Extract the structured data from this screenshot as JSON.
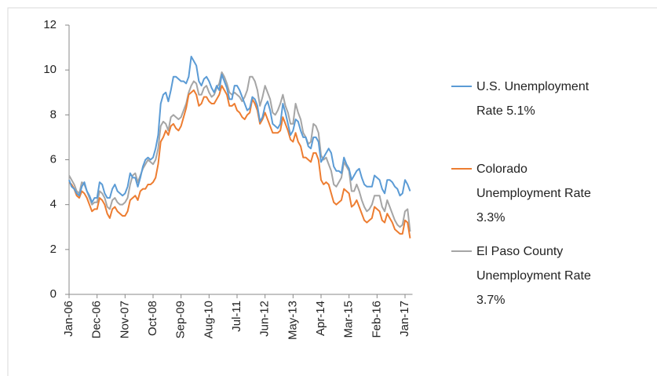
{
  "chart_data": {
    "type": "line",
    "categories": [
      "Jan-06",
      null,
      null,
      null,
      null,
      null,
      null,
      null,
      null,
      null,
      null,
      "Dec-06",
      null,
      null,
      null,
      null,
      null,
      null,
      null,
      null,
      null,
      null,
      "Nov-07",
      null,
      null,
      null,
      null,
      null,
      null,
      null,
      null,
      null,
      null,
      "Oct-08",
      null,
      null,
      null,
      null,
      null,
      null,
      null,
      null,
      null,
      null,
      "Sep-09",
      null,
      null,
      null,
      null,
      null,
      null,
      null,
      null,
      null,
      null,
      "Aug-10",
      null,
      null,
      null,
      null,
      null,
      null,
      null,
      null,
      null,
      null,
      "Jul-11",
      null,
      null,
      null,
      null,
      null,
      null,
      null,
      null,
      null,
      null,
      "Jun-12",
      null,
      null,
      null,
      null,
      null,
      null,
      null,
      null,
      null,
      null,
      "May-13",
      null,
      null,
      null,
      null,
      null,
      null,
      null,
      null,
      null,
      null,
      "Apr-14",
      null,
      null,
      null,
      null,
      null,
      null,
      null,
      null,
      null,
      null,
      "Mar-15",
      null,
      null,
      null,
      null,
      null,
      null,
      null,
      null,
      null,
      null,
      "Feb-16",
      null,
      null,
      null,
      null,
      null,
      null,
      null,
      null,
      null,
      null,
      "Jan-17",
      null,
      null
    ],
    "series": [
      {
        "name": "U.S. Unemployment Rate 5.1%",
        "color": "#5b9bd5",
        "values": [
          5.1,
          4.8,
          4.7,
          4.5,
          4.4,
          4.8,
          5.0,
          4.6,
          4.4,
          4.1,
          4.3,
          4.3,
          5.0,
          4.9,
          4.5,
          4.3,
          4.3,
          4.7,
          4.9,
          4.6,
          4.5,
          4.4,
          4.5,
          4.8,
          5.4,
          5.2,
          5.2,
          4.8,
          5.2,
          5.7,
          6.0,
          6.1,
          6.0,
          6.1,
          6.5,
          7.1,
          8.5,
          8.9,
          9.0,
          8.6,
          9.1,
          9.7,
          9.7,
          9.6,
          9.5,
          9.5,
          9.4,
          9.7,
          10.6,
          10.4,
          10.2,
          9.5,
          9.3,
          9.6,
          9.7,
          9.5,
          9.2,
          9.0,
          9.3,
          9.1,
          9.8,
          9.5,
          9.2,
          8.7,
          8.7,
          9.3,
          9.3,
          9.1,
          8.8,
          8.5,
          8.2,
          8.3,
          8.8,
          8.7,
          8.4,
          7.7,
          7.9,
          8.4,
          8.6,
          8.2,
          7.6,
          7.5,
          7.4,
          7.6,
          8.5,
          8.1,
          7.6,
          7.1,
          7.3,
          7.8,
          7.7,
          7.3,
          7.0,
          7.0,
          6.6,
          6.5,
          7.0,
          7.0,
          6.8,
          5.9,
          6.1,
          6.3,
          6.5,
          6.3,
          5.7,
          5.5,
          5.5,
          5.4,
          6.1,
          5.8,
          5.6,
          5.1,
          5.3,
          5.5,
          5.6,
          5.2,
          4.9,
          4.8,
          4.8,
          4.8,
          5.3,
          5.2,
          5.1,
          4.7,
          4.5,
          5.1,
          5.1,
          5.0,
          4.8,
          4.7,
          4.4,
          4.5,
          5.1,
          4.9,
          4.6
        ]
      },
      {
        "name": "Colorado Unemployment Rate 3.3%",
        "color": "#ed7d31",
        "values": [
          5.0,
          4.9,
          4.7,
          4.4,
          4.3,
          4.6,
          4.5,
          4.3,
          4.0,
          3.7,
          3.8,
          3.8,
          4.3,
          4.2,
          4.0,
          3.6,
          3.4,
          3.8,
          3.9,
          3.7,
          3.6,
          3.5,
          3.5,
          3.7,
          4.2,
          4.3,
          4.4,
          4.2,
          4.6,
          4.7,
          4.7,
          4.9,
          4.9,
          5.0,
          5.2,
          5.8,
          6.8,
          7.0,
          7.3,
          7.1,
          7.5,
          7.6,
          7.4,
          7.3,
          7.5,
          7.9,
          8.3,
          8.9,
          9.0,
          9.1,
          8.9,
          8.4,
          8.5,
          8.8,
          8.8,
          8.6,
          8.5,
          8.5,
          8.7,
          8.9,
          9.3,
          9.1,
          8.9,
          8.4,
          8.4,
          8.5,
          8.2,
          8.1,
          7.9,
          7.8,
          8.0,
          8.1,
          8.7,
          8.5,
          8.2,
          7.6,
          7.8,
          8.1,
          7.8,
          7.5,
          7.2,
          7.2,
          7.2,
          7.3,
          7.9,
          7.6,
          7.3,
          6.9,
          6.8,
          7.2,
          6.8,
          6.6,
          6.1,
          6.1,
          6.0,
          5.9,
          6.3,
          6.3,
          6.0,
          5.1,
          4.9,
          5.0,
          4.9,
          4.5,
          4.1,
          4.0,
          4.1,
          4.2,
          4.7,
          4.6,
          4.5,
          3.9,
          4.0,
          4.2,
          3.9,
          3.6,
          3.3,
          3.2,
          3.3,
          3.4,
          3.9,
          3.8,
          3.7,
          3.3,
          3.2,
          3.6,
          3.4,
          3.2,
          2.9,
          2.8,
          2.7,
          2.7,
          3.3,
          3.2,
          2.5
        ]
      },
      {
        "name": "El Paso County Unemployment Rate 3.7%",
        "color": "#a5a5a5",
        "values": [
          5.3,
          5.1,
          4.9,
          4.6,
          4.5,
          5.0,
          4.9,
          4.6,
          4.3,
          4.0,
          4.1,
          4.1,
          4.6,
          4.5,
          4.3,
          3.9,
          3.8,
          4.2,
          4.3,
          4.1,
          4.0,
          4.0,
          4.1,
          4.3,
          4.9,
          5.3,
          5.4,
          5.0,
          5.3,
          5.6,
          5.8,
          6.0,
          5.9,
          5.8,
          6.0,
          6.5,
          7.5,
          7.7,
          7.6,
          7.3,
          7.9,
          8.0,
          7.9,
          7.8,
          7.9,
          8.2,
          8.5,
          9.0,
          9.3,
          9.5,
          9.4,
          8.9,
          8.9,
          9.2,
          9.3,
          9.0,
          8.8,
          8.9,
          9.2,
          9.4,
          9.9,
          9.7,
          9.4,
          9.0,
          8.9,
          9.0,
          8.9,
          8.8,
          8.6,
          8.8,
          9.1,
          9.7,
          9.7,
          9.5,
          9.1,
          8.4,
          8.8,
          9.3,
          9.0,
          8.7,
          8.1,
          8.0,
          8.2,
          8.5,
          8.9,
          8.4,
          8.1,
          7.6,
          7.6,
          8.5,
          8.1,
          7.8,
          7.2,
          7.0,
          6.7,
          6.8,
          7.6,
          7.5,
          7.2,
          6.2,
          6.0,
          6.1,
          5.8,
          5.5,
          4.9,
          4.8,
          5.0,
          5.2,
          5.9,
          5.7,
          5.5,
          4.6,
          4.6,
          4.9,
          4.6,
          4.2,
          3.9,
          3.7,
          3.8,
          4.0,
          4.4,
          4.4,
          4.4,
          3.9,
          3.7,
          4.2,
          3.9,
          3.6,
          3.3,
          3.1,
          3.0,
          3.1,
          3.7,
          3.8,
          2.8
        ]
      }
    ],
    "ylim": [
      0,
      12
    ],
    "yticks": [
      0,
      2,
      4,
      6,
      8,
      10,
      12
    ],
    "grid": false,
    "legend": "right"
  }
}
